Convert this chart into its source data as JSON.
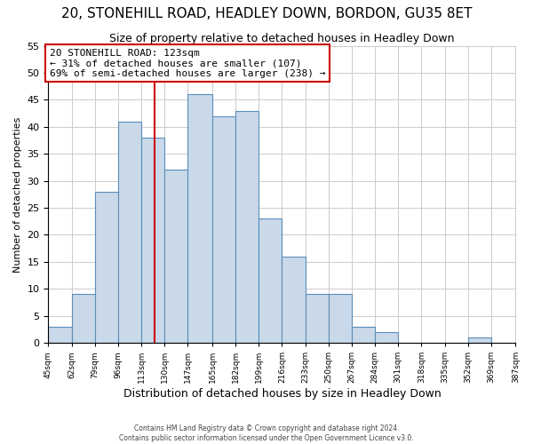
{
  "title": "20, STONEHILL ROAD, HEADLEY DOWN, BORDON, GU35 8ET",
  "subtitle": "Size of property relative to detached houses in Headley Down",
  "xlabel": "Distribution of detached houses by size in Headley Down",
  "ylabel": "Number of detached properties",
  "bin_edges": [
    45,
    62,
    79,
    96,
    113,
    130,
    147,
    165,
    182,
    199,
    216,
    233,
    250,
    267,
    284,
    301,
    318,
    335,
    352,
    369,
    387
  ],
  "counts": [
    3,
    9,
    28,
    41,
    38,
    32,
    46,
    42,
    43,
    23,
    16,
    9,
    9,
    3,
    2,
    0,
    0,
    0,
    1,
    0
  ],
  "bar_facecolor": "#c9d9ea",
  "bar_edgecolor": "#5b8db8",
  "property_size": 123,
  "property_label": "20 STONEHILL ROAD: 123sqm",
  "annotation_line1": "← 31% of detached houses are smaller (107)",
  "annotation_line2": "69% of semi-detached houses are larger (238) →",
  "vline_color": "#cc0000",
  "annotation_box_edgecolor": "#cc0000",
  "annotation_box_facecolor": "#ffffff",
  "ylim": [
    0,
    55
  ],
  "yticks": [
    0,
    5,
    10,
    15,
    20,
    25,
    30,
    35,
    40,
    45,
    50,
    55
  ],
  "tick_labels": [
    "45sqm",
    "62sqm",
    "79sqm",
    "96sqm",
    "113sqm",
    "130sqm",
    "147sqm",
    "165sqm",
    "182sqm",
    "199sqm",
    "216sqm",
    "233sqm",
    "250sqm",
    "267sqm",
    "284sqm",
    "301sqm",
    "318sqm",
    "335sqm",
    "352sqm",
    "369sqm",
    "387sqm"
  ],
  "footer_line1": "Contains HM Land Registry data © Crown copyright and database right 2024.",
  "footer_line2": "Contains public sector information licensed under the Open Government Licence v3.0.",
  "background_color": "#ffffff",
  "grid_color": "#cccccc",
  "title_fontsize": 11,
  "subtitle_fontsize": 9,
  "ylabel_fontsize": 8,
  "xlabel_fontsize": 9
}
